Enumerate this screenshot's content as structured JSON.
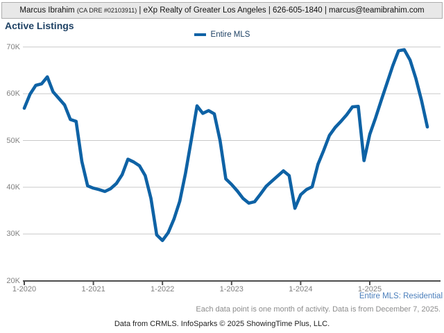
{
  "header": {
    "agent_name": "Marcus Ibrahim ",
    "license": "(CA DRE #02103911)",
    "contact_suffix": " | eXp Realty of Greater Los Angeles | 626-605-1840 | marcus@teamibrahim.com"
  },
  "title": "Active Listings",
  "legend": {
    "label": "Entire MLS"
  },
  "chart_data": {
    "type": "line",
    "title": "Active Listings",
    "x_monthly_from": "1-2020",
    "x_monthly_to": "11-2025",
    "x_tick_labels": [
      "1-2020",
      "1-2021",
      "1-2022",
      "1-2023",
      "1-2024",
      "1-2025"
    ],
    "x_tick_month_indices": [
      0,
      12,
      24,
      36,
      48,
      60
    ],
    "y_tick_labels": [
      "20K",
      "30K",
      "40K",
      "50K",
      "60K",
      "70K"
    ],
    "ylim_thousands": [
      20,
      70
    ],
    "grid": "horizontal",
    "legend_position": "top-center",
    "series": [
      {
        "name": "Entire MLS",
        "color": "#0E62A5",
        "units": "thousands of active listings",
        "values": [
          56.9,
          59.9,
          61.8,
          62.1,
          63.6,
          60.4,
          59.0,
          57.6,
          54.5,
          54.1,
          45.5,
          40.3,
          39.8,
          39.5,
          39.1,
          39.7,
          40.8,
          42.7,
          46.0,
          45.4,
          44.6,
          42.5,
          37.6,
          29.8,
          28.6,
          30.3,
          33.2,
          37.0,
          43.0,
          50.1,
          57.4,
          55.8,
          56.4,
          55.7,
          50.0,
          41.8,
          40.6,
          39.2,
          37.6,
          36.6,
          36.9,
          38.5,
          40.2,
          41.3,
          42.4,
          43.5,
          42.5,
          35.5,
          38.4,
          39.5,
          40.1,
          44.9,
          47.9,
          51.1,
          52.8,
          54.1,
          55.5,
          57.2,
          57.3,
          45.7,
          51.3,
          54.8,
          58.6,
          62.3,
          66.0,
          69.2,
          69.4,
          67.2,
          63.3,
          58.5,
          52.9
        ]
      }
    ]
  },
  "annotations": {
    "series_scope": "Entire MLS: Residential",
    "footnote": "Each data point is one month of activity. Data is from December 7, 2025.",
    "footer": "Data from CRMLS. InfoSparks © 2025 ShowingTime Plus, LLC."
  },
  "colors": {
    "line": "#0E62A5",
    "title_text": "#1E4164",
    "link_text": "#4A7EBB",
    "axis_label": "#808080",
    "gridline": "#C9C9C9",
    "axis_line": "#4D4D4D",
    "header_bg": "#E8E8E8",
    "header_border": "#ADADAD"
  }
}
